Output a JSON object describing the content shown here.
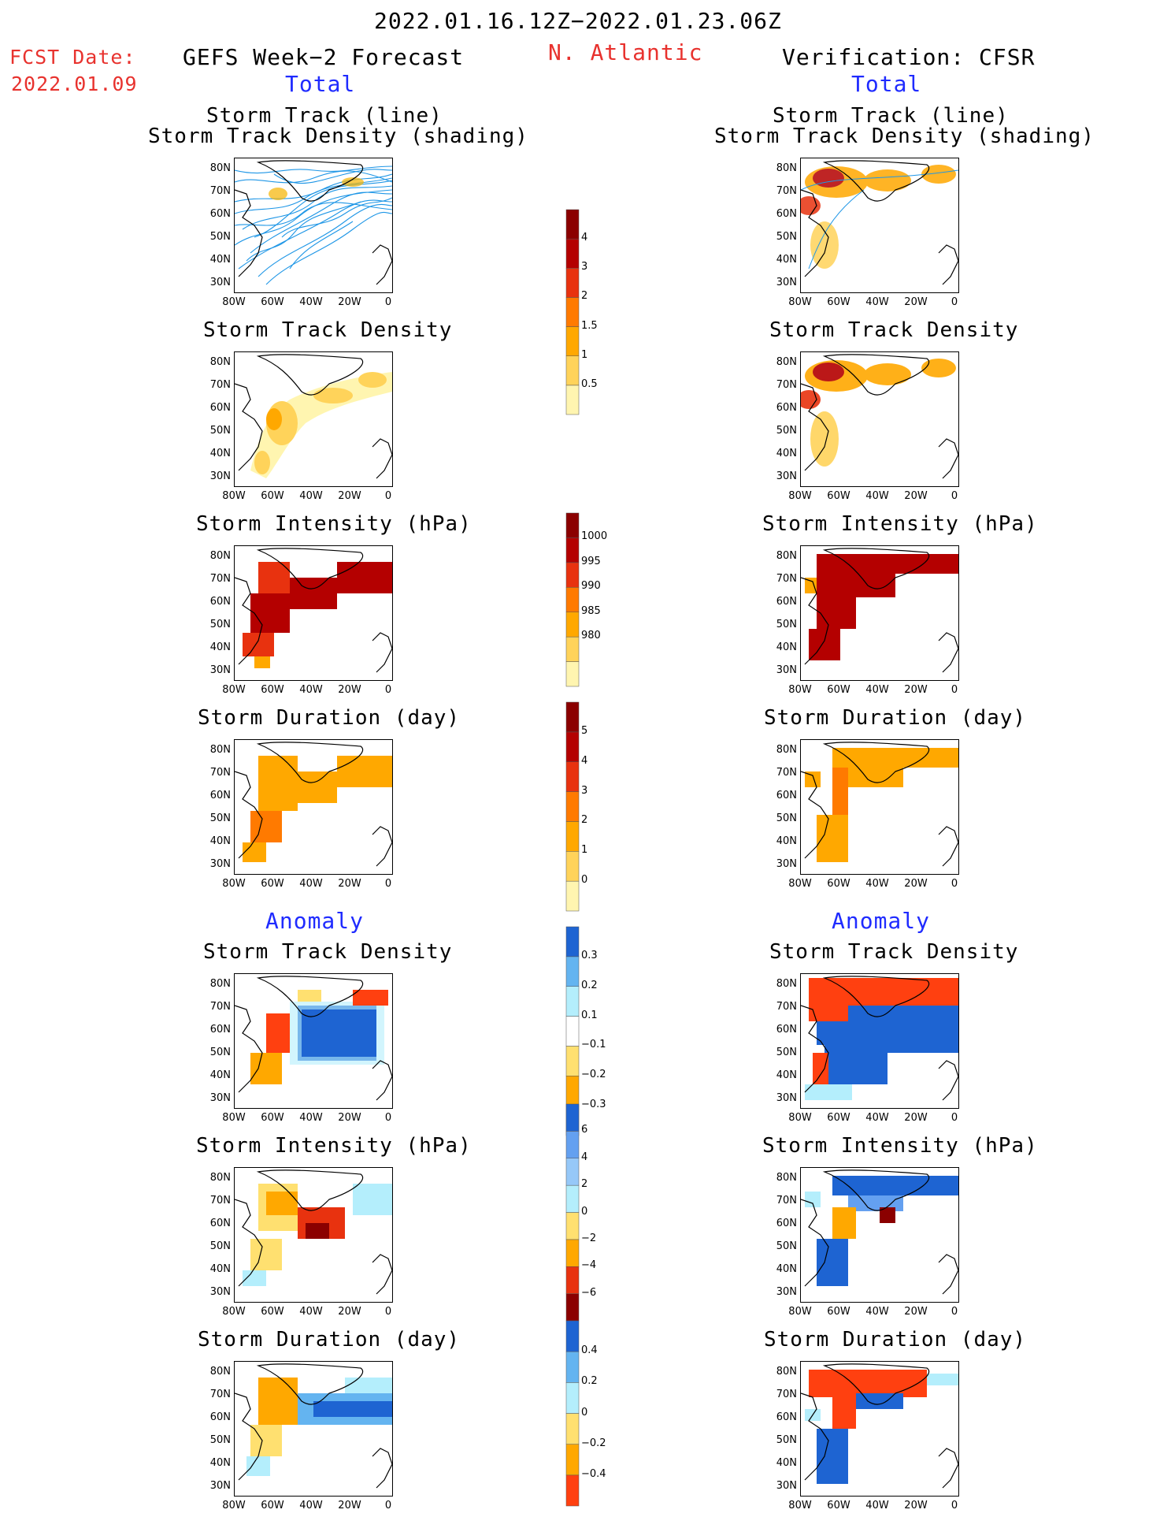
{
  "header": {
    "date_range": "2022.01.16.12Z−2022.01.23.06Z",
    "fcst_label": "FCST Date:",
    "fcst_date": "2022.01.09",
    "left_title": "GEFS Week−2 Forecast",
    "region": "N. Atlantic",
    "right_title": "Verification: CFSR",
    "total_label": "Total",
    "anomaly_label": "Anomaly"
  },
  "panel_titles": {
    "track_line": "Storm Track (line)",
    "track_density_shading": "Storm Track Density (shading)",
    "track_density": "Storm Track Density",
    "intensity": "Storm Intensity (hPa)",
    "duration": "Storm Duration (day)"
  },
  "axes": {
    "lat_labels": [
      "80N",
      "70N",
      "60N",
      "50N",
      "40N",
      "30N"
    ],
    "lon_labels": [
      "80W",
      "60W",
      "40W",
      "20W",
      "0"
    ]
  },
  "colorbars": {
    "track_density": {
      "labels": [
        "4",
        "3",
        "2",
        "1.5",
        "1",
        "0.5"
      ],
      "colors": [
        "#fff5b0",
        "#ffd35a",
        "#ffa800",
        "#ff7a00",
        "#e8320f",
        "#b40000",
        "#8b0000"
      ]
    },
    "intensity": {
      "labels": [
        "1000",
        "995",
        "990",
        "985",
        "980"
      ],
      "colors": [
        "#fff5b0",
        "#ffd35a",
        "#ffa800",
        "#ff7a00",
        "#e8320f",
        "#b40000",
        "#8b0000"
      ]
    },
    "duration": {
      "labels": [
        "5",
        "4",
        "3",
        "2",
        "1",
        "0"
      ],
      "colors": [
        "#fff5b0",
        "#ffd35a",
        "#ffa800",
        "#ff7a00",
        "#e8320f",
        "#b40000",
        "#8b0000"
      ]
    },
    "anom_density": {
      "labels": [
        "0.3",
        "0.2",
        "0.1",
        "−0.1",
        "−0.2",
        "−0.3"
      ],
      "colors": [
        "#ff4010",
        "#ffa800",
        "#ffe070",
        "#ffffff",
        "#b4eefc",
        "#64b4f0",
        "#1e64d2"
      ]
    },
    "anom_intensity": {
      "labels": [
        "6",
        "4",
        "2",
        "0",
        "−2",
        "−4",
        "−6"
      ],
      "colors": [
        "#8b0000",
        "#e8320f",
        "#ffa800",
        "#ffe070",
        "#b4eefc",
        "#96c8f8",
        "#64a0f0",
        "#1e64d2"
      ]
    },
    "anom_duration": {
      "labels": [
        "0.4",
        "0.2",
        "0",
        "−0.2",
        "−0.4"
      ],
      "colors": [
        "#ff4010",
        "#ffa800",
        "#ffe070",
        "#b4eefc",
        "#64b4f0",
        "#1e64d2"
      ]
    }
  }
}
